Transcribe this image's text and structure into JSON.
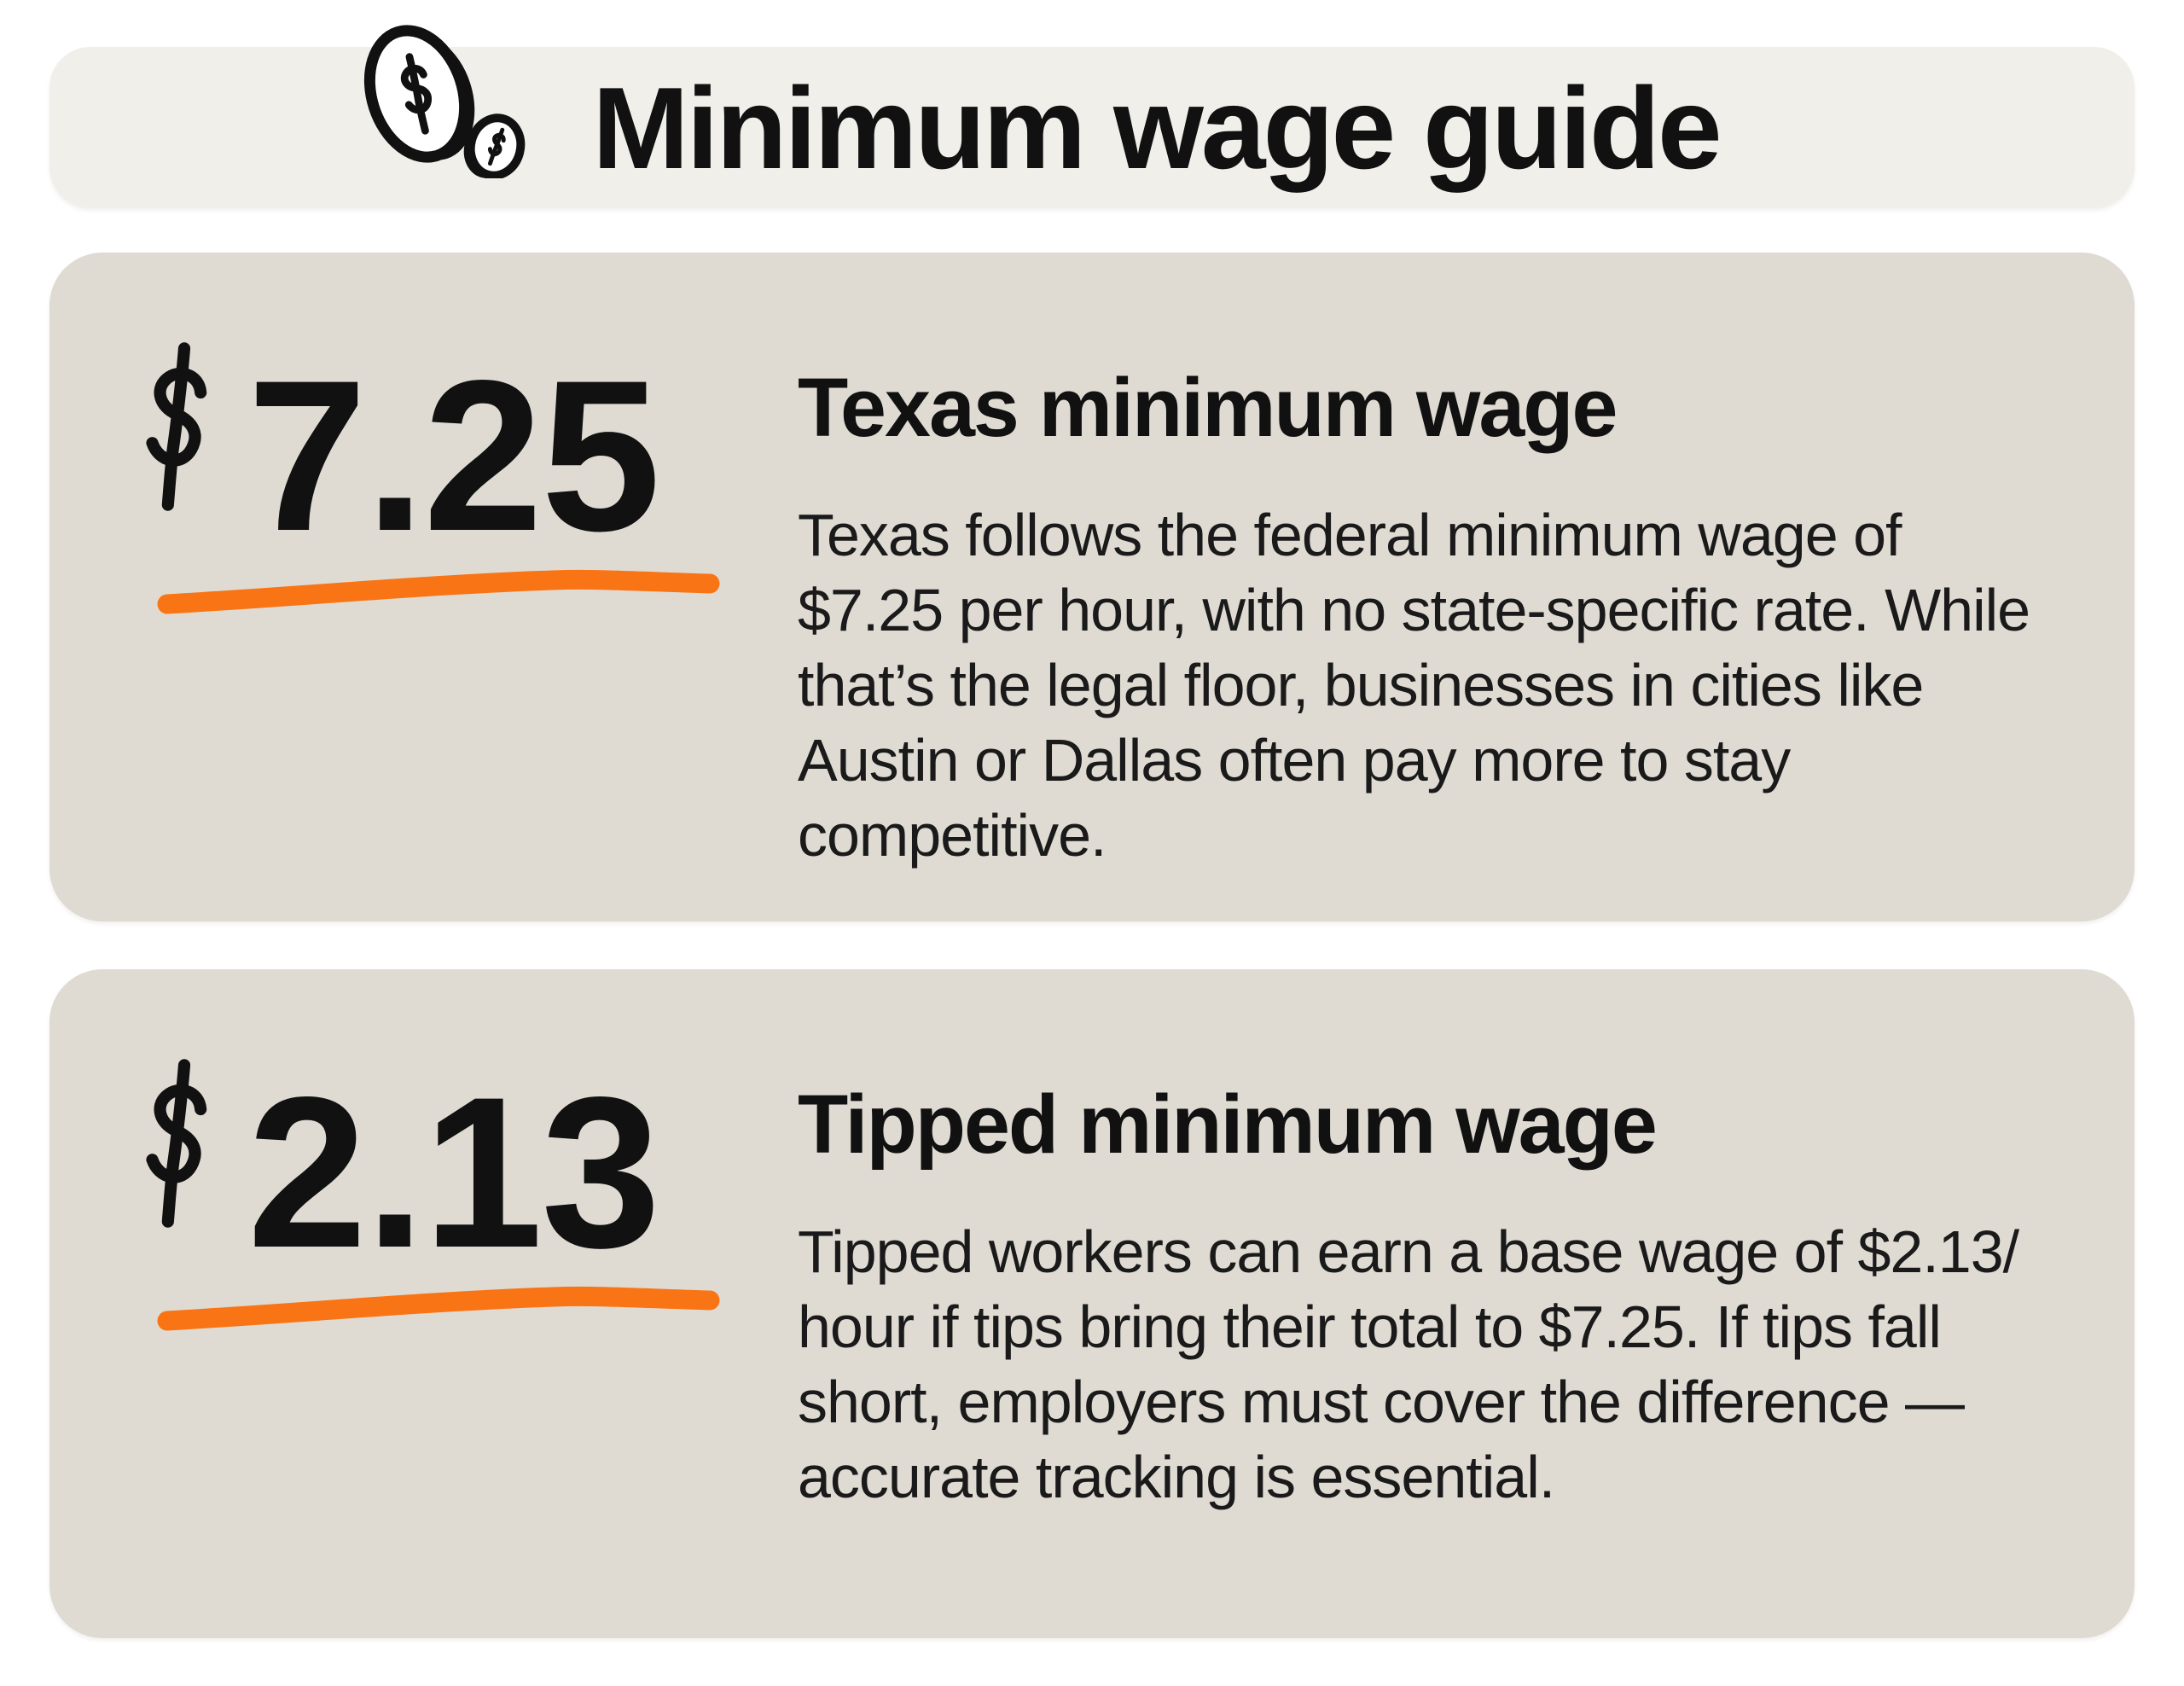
{
  "header": {
    "title": "Minimum wage guide",
    "icon": "dollar-coins-icon"
  },
  "cards": [
    {
      "currency": "$",
      "amount": "7.25",
      "heading": "Texas minimum wage",
      "body_lines": [
        "Texas follows the federal minimum wage of",
        "$7.25 per hour, with no state-specific rate. While",
        "that’s the legal floor, businesses in cities like",
        "Austin or Dallas often pay more to stay",
        "competitive."
      ]
    },
    {
      "currency": "$",
      "amount": "2.13",
      "heading": "Tipped minimum wage",
      "body_lines": [
        "Tipped workers can earn a base wage of $2.13/",
        "hour if tips bring their total to $7.25. If tips fall",
        "short, employers must cover the difference —",
        "accurate tracking is essential."
      ]
    }
  ],
  "icons": {
    "header_icon": "dollar-coins-icon",
    "amount_prefix_icon": "hand-drawn-dollar-icon",
    "underline_decoration": "hand-drawn-orange-underline"
  },
  "colors": {
    "band-bg": "#F0EFEA",
    "card-bg": "#DFDBD3",
    "accent-orange": "#F97415",
    "ink": "#111111",
    "body-ink": "#1A1A1A",
    "page-bg": "#FFFFFF"
  }
}
